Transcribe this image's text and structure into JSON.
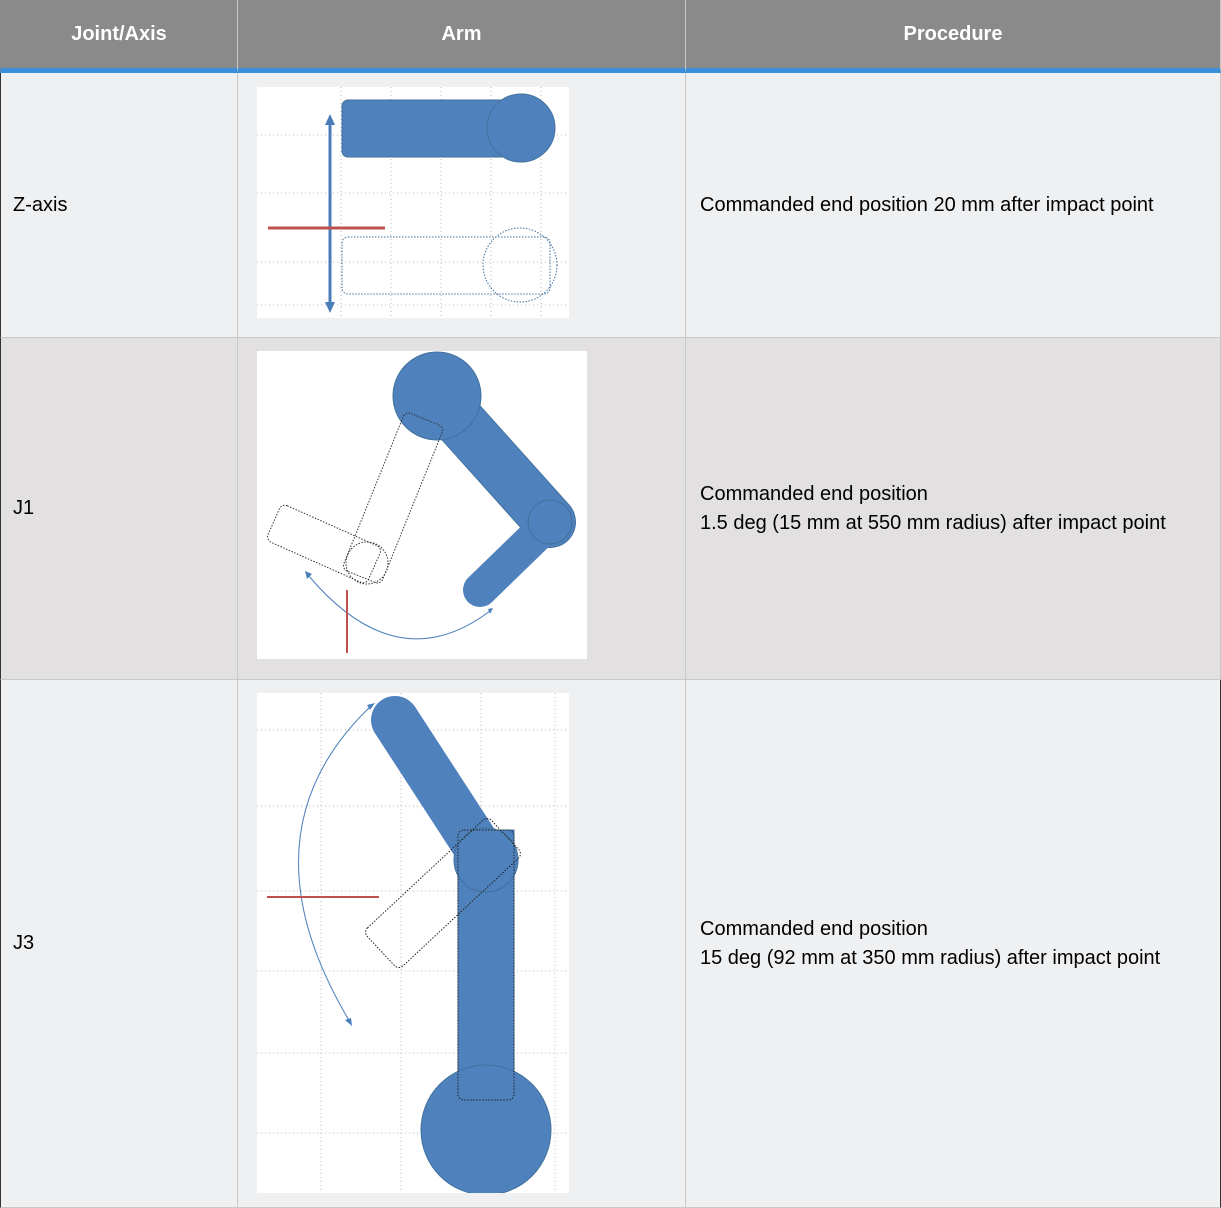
{
  "header": {
    "columns": [
      "Joint/Axis",
      "Arm",
      "Procedure"
    ]
  },
  "table": {
    "rows": [
      {
        "joint": "Z-axis",
        "procedure": [
          "Commanded end position 20 mm after impact point"
        ]
      },
      {
        "joint": "J1",
        "procedure": [
          "Commanded end position",
          "1.5 deg (15 mm at 550 mm radius) after impact point"
        ]
      },
      {
        "joint": "J3",
        "procedure": [
          "Commanded end position",
          "15 deg (92 mm at 350 mm radius) after impact point"
        ]
      }
    ]
  }
}
